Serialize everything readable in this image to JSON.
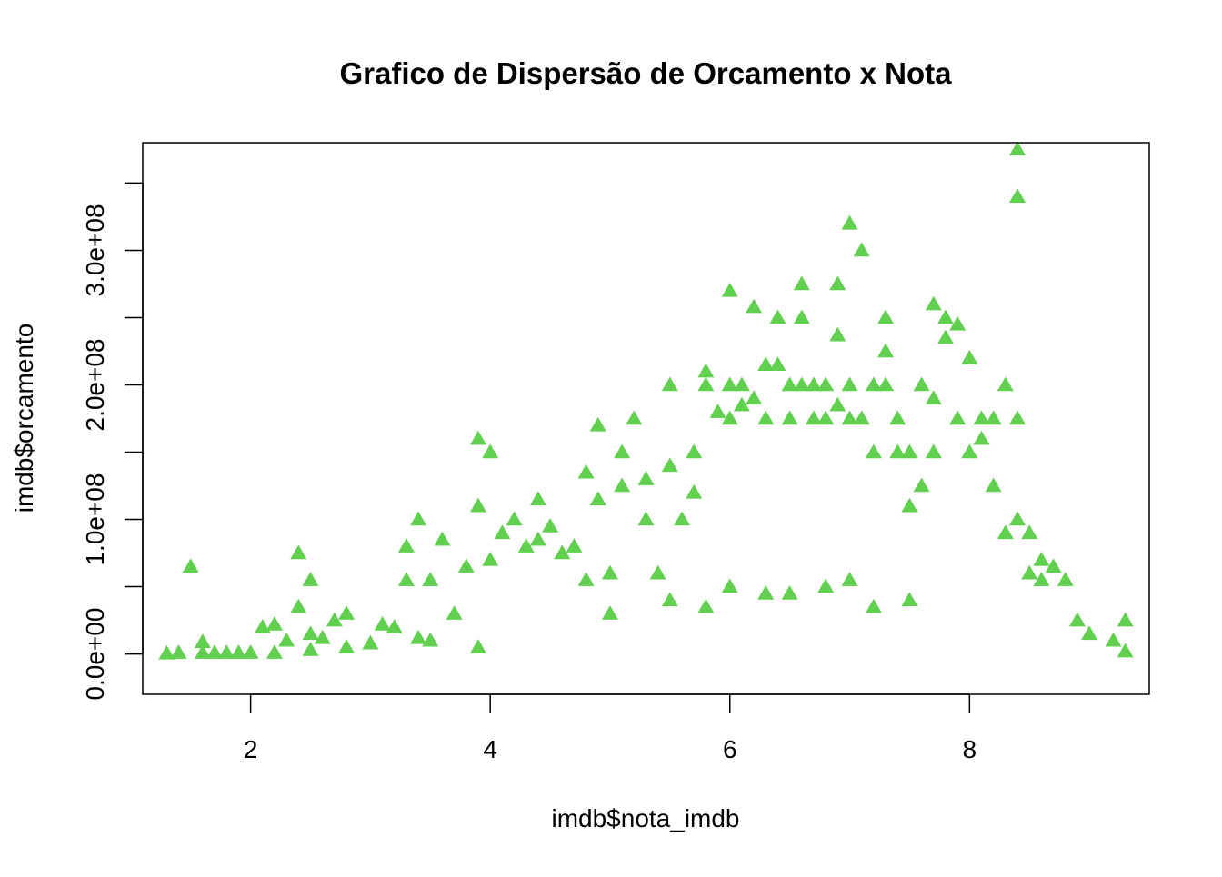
{
  "chart_data": {
    "type": "scatter",
    "title": "Grafico de Dispersão de Orcamento x Nota",
    "xlabel": "imdb$nota_imdb",
    "ylabel": "imdb$orcamento",
    "xlim": [
      1.1,
      9.5
    ],
    "ylim": [
      -30000000.0,
      380000000.0
    ],
    "x_ticks": [
      2,
      4,
      6,
      8
    ],
    "x_tick_labels": [
      "2",
      "4",
      "6",
      "8"
    ],
    "y_ticks": [
      0,
      50000000,
      100000000,
      150000000,
      200000000,
      250000000,
      300000000,
      350000000
    ],
    "y_tick_labels": [
      "0.0e+00",
      "",
      "1.0e+08",
      "",
      "2.0e+08",
      "",
      "3.0e+08",
      ""
    ],
    "marker": "filled-triangle",
    "point_color": "#61D04F",
    "grid": false,
    "legend": "none",
    "series": [
      {
        "x": [
          1.3,
          1.4,
          1.5,
          1.6,
          1.6,
          1.7,
          1.8,
          1.9,
          2.0,
          2.1,
          2.2,
          2.2,
          2.3,
          2.4,
          2.4,
          2.5,
          2.5,
          2.5,
          2.6,
          2.7,
          2.8,
          2.8,
          3.0,
          3.1,
          3.2,
          3.3,
          3.3,
          3.4,
          3.4,
          3.5,
          3.5,
          3.6,
          3.7,
          3.8,
          3.9,
          3.9,
          3.9,
          4.0,
          4.0,
          4.1,
          4.2,
          4.3,
          4.4,
          4.4,
          4.5,
          4.6,
          4.7,
          4.8,
          4.8,
          4.9,
          4.9,
          5.0,
          5.1,
          5.1,
          5.2,
          5.3,
          5.3,
          5.4,
          5.5,
          5.5,
          5.6,
          5.7,
          5.7,
          5.8,
          5.8,
          5.9,
          6.0,
          6.0,
          6.0,
          6.1,
          6.1,
          6.2,
          6.2,
          6.3,
          6.3,
          6.4,
          6.4,
          6.5,
          6.5,
          6.6,
          6.6,
          6.6,
          6.7,
          6.7,
          6.8,
          6.8,
          6.9,
          6.9,
          6.9,
          7.0,
          7.0,
          7.0,
          7.1,
          7.1,
          7.2,
          7.2,
          7.3,
          7.3,
          7.3,
          7.4,
          7.4,
          7.5,
          7.5,
          7.6,
          7.6,
          7.7,
          7.7,
          7.7,
          7.8,
          7.8,
          7.9,
          7.9,
          8.0,
          8.0,
          8.1,
          8.1,
          8.2,
          8.2,
          8.3,
          8.3,
          8.4,
          8.4,
          8.4,
          8.4,
          8.5,
          8.5,
          8.6,
          8.6,
          8.7,
          8.8,
          8.9,
          9.0,
          9.2,
          9.3,
          9.3,
          5.5,
          6.0,
          6.5,
          7.0,
          7.5,
          5.0,
          5.8,
          6.3,
          6.8,
          7.2
        ],
        "y": [
          500000,
          1000000,
          65000000,
          9000000,
          1000000,
          1000000,
          1000000,
          1000000,
          1000000,
          20000000,
          1000000,
          22000000,
          10000000,
          35000000,
          75000000,
          55000000,
          15000000,
          3000000,
          12000000,
          25000000,
          30000000,
          5000000,
          8000000,
          22000000,
          20000000,
          55000000,
          80000000,
          100000000,
          12000000,
          55000000,
          10000000,
          85000000,
          30000000,
          65000000,
          110000000,
          160000000,
          5000000,
          150000000,
          70000000,
          90000000,
          100000000,
          80000000,
          115000000,
          85000000,
          95000000,
          75000000,
          80000000,
          135000000,
          55000000,
          170000000,
          115000000,
          60000000,
          150000000,
          125000000,
          175000000,
          100000000,
          130000000,
          60000000,
          200000000,
          140000000,
          100000000,
          150000000,
          120000000,
          210000000,
          200000000,
          180000000,
          270000000,
          200000000,
          175000000,
          185000000,
          200000000,
          258000000,
          190000000,
          215000000,
          175000000,
          250000000,
          215000000,
          200000000,
          175000000,
          275000000,
          250000000,
          200000000,
          175000000,
          200000000,
          200000000,
          175000000,
          237000000,
          275000000,
          185000000,
          320000000,
          200000000,
          175000000,
          300000000,
          175000000,
          200000000,
          150000000,
          250000000,
          225000000,
          200000000,
          175000000,
          150000000,
          150000000,
          110000000,
          200000000,
          125000000,
          260000000,
          190000000,
          150000000,
          250000000,
          235000000,
          245000000,
          175000000,
          220000000,
          150000000,
          175000000,
          160000000,
          175000000,
          125000000,
          200000000,
          90000000,
          340000000,
          375000000,
          175000000,
          100000000,
          90000000,
          60000000,
          70000000,
          55000000,
          65000000,
          55000000,
          25000000,
          15000000,
          10000000,
          25000000,
          2000000,
          40000000,
          50000000,
          45000000,
          55000000,
          40000000,
          30000000,
          35000000,
          45000000,
          50000000,
          35000000
        ]
      }
    ]
  }
}
